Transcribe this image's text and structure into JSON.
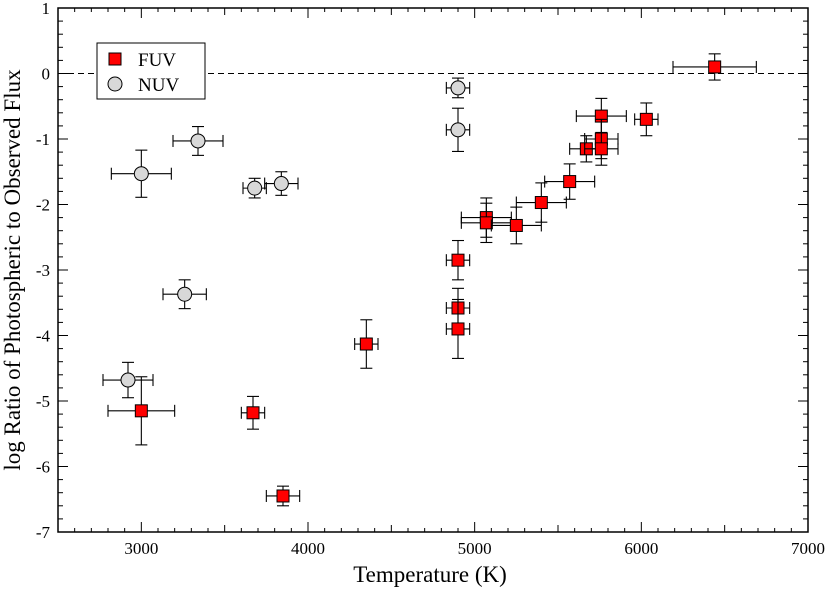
{
  "chart_data": {
    "type": "scatter",
    "title": "",
    "xlabel": "Temperature (K)",
    "ylabel": "log Ratio of Photospheric to Observed Flux",
    "xlim": [
      2500,
      7000
    ],
    "ylim": [
      -7,
      1
    ],
    "x_major_ticks": [
      3000,
      4000,
      5000,
      6000,
      7000
    ],
    "x_tick_labels": [
      "3000",
      "4000",
      "5000",
      "6000",
      "7000"
    ],
    "y_major_ticks": [
      1,
      0,
      -1,
      -2,
      -3,
      -4,
      -5,
      -6,
      -7
    ],
    "y_tick_labels": [
      "1",
      "0",
      "-1",
      "-2",
      "-3",
      "-4",
      "-5",
      "-6",
      "-7"
    ],
    "grid": false,
    "legend_position": "top-left",
    "reference_line": {
      "y": 0,
      "style": "dashed"
    },
    "series": [
      {
        "name": "FUV",
        "marker": "square",
        "color": "#ff0000",
        "points": [
          {
            "x": 3000,
            "y": -5.15,
            "xerr": 200,
            "yerr": 0.52
          },
          {
            "x": 3670,
            "y": -5.18,
            "xerr": 70,
            "yerr": 0.25
          },
          {
            "x": 3850,
            "y": -6.45,
            "xerr": 100,
            "yerr": 0.15
          },
          {
            "x": 4350,
            "y": -4.13,
            "xerr": 70,
            "yerr": 0.37
          },
          {
            "x": 4900,
            "y": -2.85,
            "xerr": 70,
            "yerr": 0.3
          },
          {
            "x": 4900,
            "y": -3.58,
            "xerr": 70,
            "yerr": 0.3
          },
          {
            "x": 4900,
            "y": -3.9,
            "xerr": 70,
            "yerr": 0.45
          },
          {
            "x": 5070,
            "y": -2.2,
            "xerr": 150,
            "yerr": 0.3
          },
          {
            "x": 5070,
            "y": -2.28,
            "xerr": 150,
            "yerr": 0.3
          },
          {
            "x": 5250,
            "y": -2.32,
            "xerr": 150,
            "yerr": 0.28
          },
          {
            "x": 5400,
            "y": -1.97,
            "xerr": 150,
            "yerr": 0.3
          },
          {
            "x": 5570,
            "y": -1.65,
            "xerr": 150,
            "yerr": 0.27
          },
          {
            "x": 5670,
            "y": -1.15,
            "xerr": 100,
            "yerr": 0.2
          },
          {
            "x": 5760,
            "y": -0.65,
            "xerr": 150,
            "yerr": 0.27
          },
          {
            "x": 5760,
            "y": -1.0,
            "xerr": 100,
            "yerr": 0.3
          },
          {
            "x": 5760,
            "y": -1.15,
            "xerr": 100,
            "yerr": 0.25
          },
          {
            "x": 6030,
            "y": -0.7,
            "xerr": 70,
            "yerr": 0.25
          },
          {
            "x": 6440,
            "y": 0.1,
            "xerr": 250,
            "yerr": 0.2
          }
        ]
      },
      {
        "name": "NUV",
        "marker": "circle",
        "color": "#d8d8d8",
        "points": [
          {
            "x": 3000,
            "y": -1.53,
            "xerr": 180,
            "yerr": 0.36
          },
          {
            "x": 3340,
            "y": -1.03,
            "xerr": 150,
            "yerr": 0.22
          },
          {
            "x": 3680,
            "y": -1.75,
            "xerr": 70,
            "yerr": 0.15
          },
          {
            "x": 3840,
            "y": -1.68,
            "xerr": 100,
            "yerr": 0.18
          },
          {
            "x": 3260,
            "y": -3.37,
            "xerr": 130,
            "yerr": 0.22
          },
          {
            "x": 2920,
            "y": -4.68,
            "xerr": 150,
            "yerr": 0.27
          },
          {
            "x": 4900,
            "y": -0.22,
            "xerr": 70,
            "yerr": 0.15
          },
          {
            "x": 4900,
            "y": -0.86,
            "xerr": 70,
            "yerr": 0.33
          }
        ]
      }
    ]
  }
}
